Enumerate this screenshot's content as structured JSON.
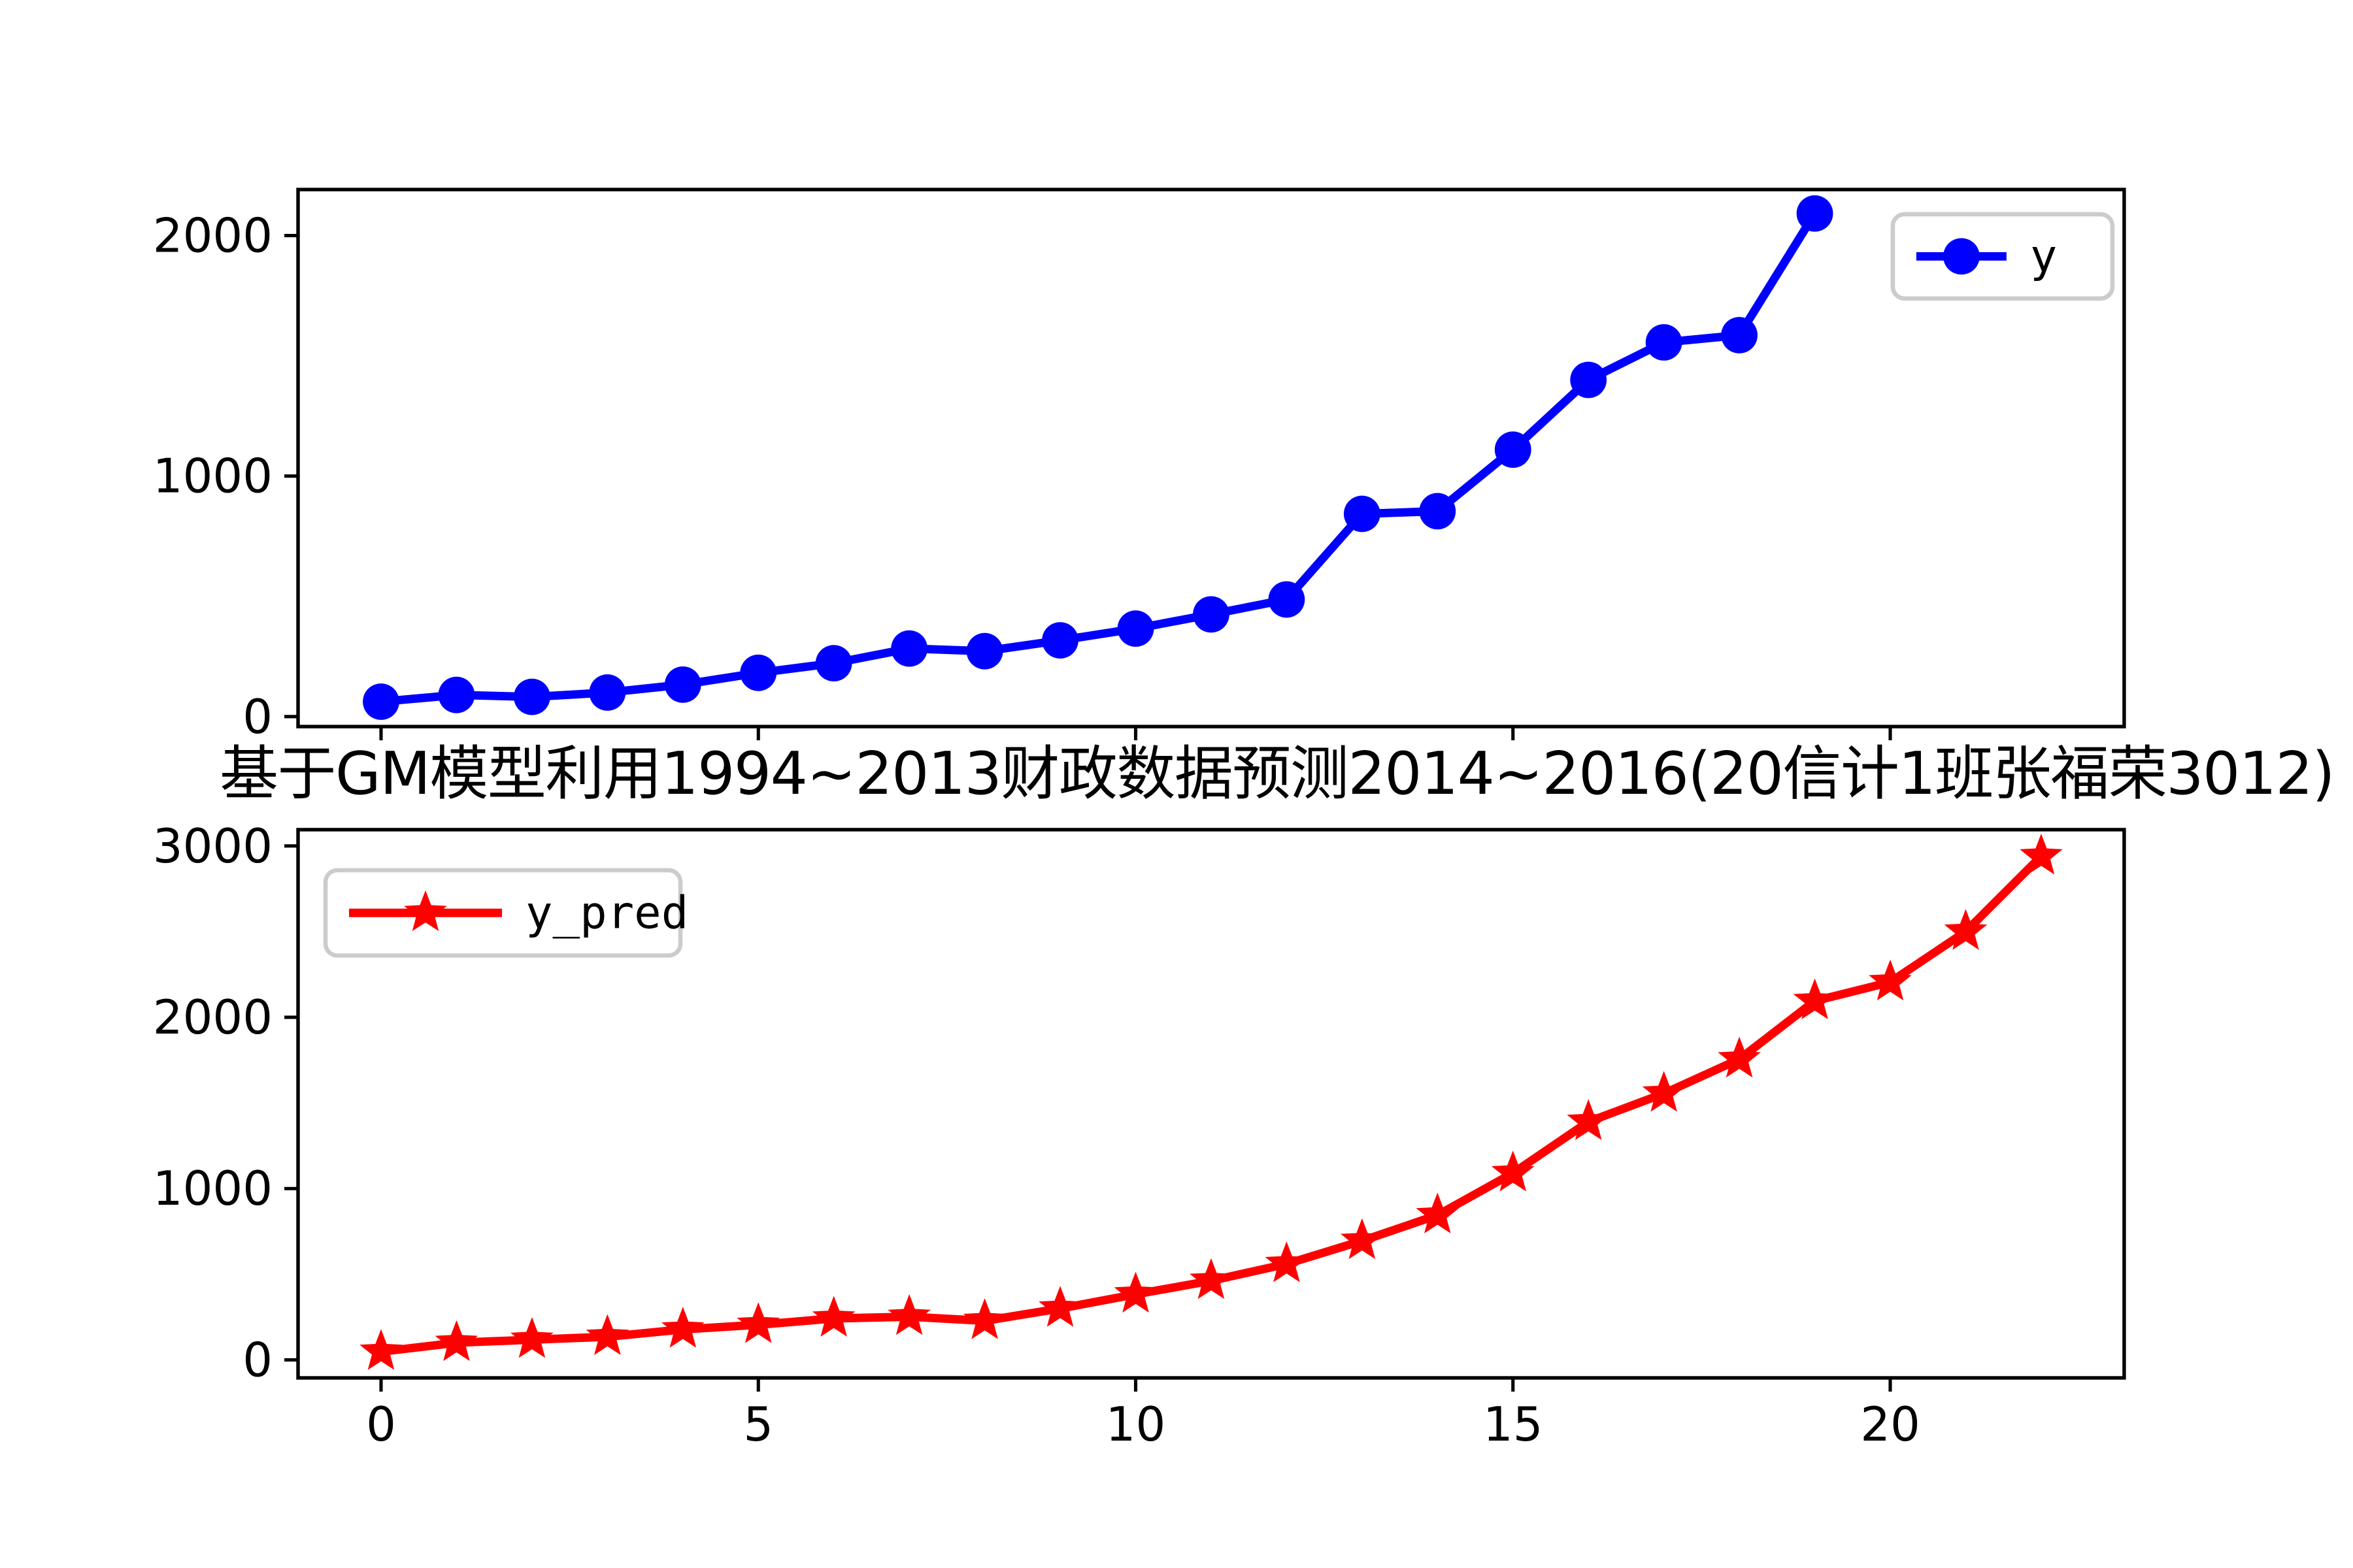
{
  "figure": {
    "title": "基于GM模型利用1994~2013财政数据预测2014~2016(20信计1班张福荣3012)",
    "background": "#ffffff"
  },
  "style": {
    "spine_color": "#000000",
    "tick_color": "#000000",
    "text_color": "#000000",
    "legend_border": "#cccccc",
    "legend_background": "#ffffff"
  },
  "chart_data": [
    {
      "type": "line",
      "id": "observed",
      "x": [
        0,
        1,
        2,
        3,
        4,
        5,
        6,
        7,
        8,
        9,
        10,
        11,
        12,
        13,
        14,
        15,
        16,
        17,
        18,
        19
      ],
      "series": [
        {
          "name": "y",
          "color": "#0000ff",
          "marker": "circle",
          "values": [
            62,
            90,
            82,
            100,
            133,
            182,
            222,
            283,
            272,
            317,
            366,
            425,
            487,
            843,
            854,
            1110,
            1400,
            1556,
            1586,
            2092
          ]
        }
      ],
      "xlim": [
        -1.1,
        23.1
      ],
      "ylim": [
        -41.5,
        2191.5
      ],
      "xticks": [
        0,
        5,
        10,
        15,
        20
      ],
      "show_xtick_labels": false,
      "yticks": [
        0,
        1000,
        2000
      ],
      "grid": false,
      "legend": {
        "label": "y",
        "position": "upper right"
      }
    },
    {
      "type": "line",
      "id": "predicted",
      "x": [
        0,
        1,
        2,
        3,
        4,
        5,
        6,
        7,
        8,
        9,
        10,
        11,
        12,
        13,
        14,
        15,
        16,
        17,
        18,
        19,
        20,
        21,
        22
      ],
      "series": [
        {
          "name": "y_pred",
          "color": "#ff0000",
          "marker": "star",
          "values": [
            48,
            100,
            118,
            135,
            178,
            205,
            242,
            252,
            228,
            300,
            383,
            462,
            560,
            695,
            845,
            1090,
            1390,
            1555,
            1755,
            2095,
            2205,
            2500,
            2940
          ]
        }
      ],
      "xlim": [
        -1.1,
        23.1
      ],
      "ylim": [
        -105,
        3095
      ],
      "xticks": [
        0,
        5,
        10,
        15,
        20
      ],
      "show_xtick_labels": true,
      "yticks": [
        0,
        1000,
        2000,
        3000
      ],
      "grid": false,
      "legend": {
        "label": "y_pred",
        "position": "upper left"
      }
    }
  ]
}
